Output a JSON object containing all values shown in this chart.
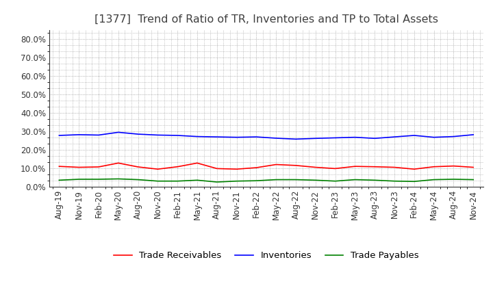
{
  "title": "[1377]  Trend of Ratio of TR, Inventories and TP to Total Assets",
  "x_labels": [
    "Aug-19",
    "Nov-19",
    "Feb-20",
    "May-20",
    "Aug-20",
    "Nov-20",
    "Feb-21",
    "May-21",
    "Aug-21",
    "Nov-21",
    "Feb-22",
    "May-22",
    "Aug-22",
    "Nov-22",
    "Feb-23",
    "May-23",
    "Aug-23",
    "Nov-23",
    "Feb-24",
    "May-24",
    "Aug-24",
    "Nov-24"
  ],
  "trade_receivables": [
    0.11,
    0.105,
    0.107,
    0.128,
    0.107,
    0.095,
    0.108,
    0.128,
    0.098,
    0.095,
    0.103,
    0.12,
    0.115,
    0.105,
    0.098,
    0.11,
    0.108,
    0.105,
    0.095,
    0.108,
    0.112,
    0.105
  ],
  "inventories": [
    0.278,
    0.282,
    0.28,
    0.295,
    0.285,
    0.28,
    0.278,
    0.272,
    0.27,
    0.268,
    0.27,
    0.263,
    0.258,
    0.262,
    0.265,
    0.268,
    0.262,
    0.27,
    0.278,
    0.268,
    0.272,
    0.282
  ],
  "trade_payables": [
    0.035,
    0.04,
    0.04,
    0.042,
    0.038,
    0.03,
    0.03,
    0.035,
    0.025,
    0.03,
    0.032,
    0.038,
    0.038,
    0.035,
    0.03,
    0.038,
    0.035,
    0.03,
    0.028,
    0.038,
    0.04,
    0.038
  ],
  "tr_color": "#ff0000",
  "inv_color": "#0000ff",
  "tp_color": "#008000",
  "bg_color": "#ffffff",
  "plot_bg_color": "#ffffff",
  "grid_color": "#999999",
  "title_color": "#404040",
  "ylim": [
    0.0,
    0.85
  ],
  "yticks": [
    0.0,
    0.1,
    0.2,
    0.3,
    0.4,
    0.5,
    0.6,
    0.7,
    0.8
  ],
  "legend_labels": [
    "Trade Receivables",
    "Inventories",
    "Trade Payables"
  ],
  "title_fontsize": 11.5,
  "axis_fontsize": 8.5,
  "legend_fontsize": 9.5
}
